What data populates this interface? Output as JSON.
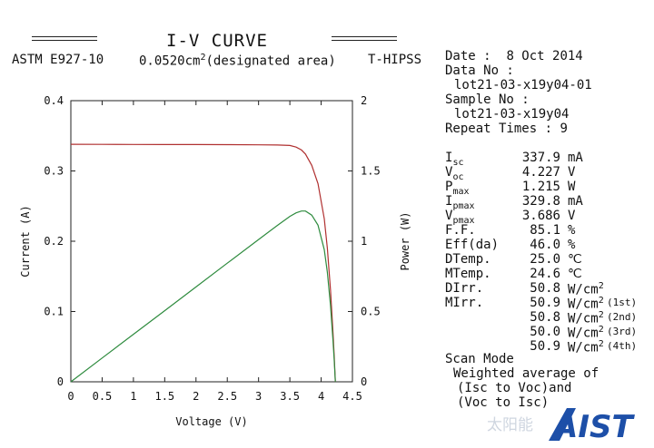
{
  "header": {
    "title": "I-V CURVE",
    "standard": "ASTM E927-10",
    "area_value": "0.0520cm",
    "area_sup": "2",
    "area_note": "(designated area)",
    "method": "T-HIPSS"
  },
  "info": {
    "date_label": "Date :",
    "date_value": "8 Oct 2014",
    "data_no_label": "Data No :",
    "data_no_value": "lot21-03-x19y04-01",
    "sample_no_label": "Sample No :",
    "sample_no_value": "lot21-03-x19y04",
    "repeat_label": "Repeat Times :",
    "repeat_value": "9"
  },
  "params": [
    {
      "main": "I",
      "sub": "sc",
      "value": "337.9",
      "unit": "mA"
    },
    {
      "main": "V",
      "sub": "oc",
      "value": "4.227",
      "unit": "V"
    },
    {
      "main": "P",
      "sub": "max",
      "value": "1.215",
      "unit": "W"
    },
    {
      "main": "I",
      "sub": "pmax",
      "value": "329.8",
      "unit": "mA"
    },
    {
      "main": "V",
      "sub": "pmax",
      "value": "3.686",
      "unit": "V"
    },
    {
      "main": "F.F.",
      "sub": "",
      "value": "85.1",
      "unit": "%"
    },
    {
      "main": "Eff(da)",
      "sub": "",
      "value": "46.0",
      "unit": "%"
    },
    {
      "main": "DTemp.",
      "sub": "",
      "value": "25.0",
      "unit": "℃"
    },
    {
      "main": "MTemp.",
      "sub": "",
      "value": "24.6",
      "unit": "℃"
    },
    {
      "main": "DIrr.",
      "sub": "",
      "value": "50.8",
      "unit": "W/cm",
      "unit_sup": "2",
      "note": ""
    },
    {
      "main": "MIrr.",
      "sub": "",
      "value": "50.9",
      "unit": "W/cm",
      "unit_sup": "2",
      "note": "(1st)"
    },
    {
      "main": "",
      "sub": "",
      "value": "50.8",
      "unit": "W/cm",
      "unit_sup": "2",
      "note": "(2nd)"
    },
    {
      "main": "",
      "sub": "",
      "value": "50.0",
      "unit": "W/cm",
      "unit_sup": "2",
      "note": "(3rd)"
    },
    {
      "main": "",
      "sub": "",
      "value": "50.9",
      "unit": "W/cm",
      "unit_sup": "2",
      "note": "(4th)"
    }
  ],
  "scan": {
    "label": "Scan Mode",
    "line1": "Weighted average of",
    "line2": "(Isc to Voc)and",
    "line3": "(Voc to Isc)"
  },
  "watermark": {
    "chinese": "太阳能",
    "brand": "AIST",
    "brand_color": "#1d4fa8"
  },
  "chart_data": {
    "type": "line",
    "xlabel": "Voltage (V)",
    "ylabel": "Current (A)",
    "y2label": "Power (W)",
    "xlim": [
      0,
      4.5
    ],
    "ylim": [
      0,
      0.4
    ],
    "y2lim": [
      0,
      2
    ],
    "xticks": [
      "0",
      "0.5",
      "1",
      "1.5",
      "2",
      "2.5",
      "3",
      "3.5",
      "4",
      "4.5"
    ],
    "yticks": [
      "0",
      "0.1",
      "0.2",
      "0.3",
      "0.4"
    ],
    "y2ticks": [
      "0",
      "0.5",
      "1",
      "1.5",
      "2"
    ],
    "grid": false,
    "series": [
      {
        "color": "#b03030",
        "axis": "left",
        "points": [
          [
            0,
            0.3379
          ],
          [
            0.5,
            0.3378
          ],
          [
            1.0,
            0.3377
          ],
          [
            1.5,
            0.3376
          ],
          [
            2.0,
            0.3375
          ],
          [
            2.5,
            0.3374
          ],
          [
            3.0,
            0.3372
          ],
          [
            3.3,
            0.3369
          ],
          [
            3.5,
            0.3362
          ],
          [
            3.6,
            0.334
          ],
          [
            3.686,
            0.3298
          ],
          [
            3.75,
            0.324
          ],
          [
            3.85,
            0.308
          ],
          [
            3.95,
            0.282
          ],
          [
            4.05,
            0.232
          ],
          [
            4.1,
            0.19
          ],
          [
            4.15,
            0.13
          ],
          [
            4.19,
            0.07
          ],
          [
            4.21,
            0.035
          ],
          [
            4.227,
            0.0
          ]
        ]
      },
      {
        "color": "#2e8b3e",
        "axis": "right",
        "points": [
          [
            0,
            0
          ],
          [
            0.5,
            0.169
          ],
          [
            1.0,
            0.338
          ],
          [
            1.5,
            0.506
          ],
          [
            2.0,
            0.675
          ],
          [
            2.5,
            0.844
          ],
          [
            3.0,
            1.012
          ],
          [
            3.3,
            1.112
          ],
          [
            3.5,
            1.177
          ],
          [
            3.6,
            1.202
          ],
          [
            3.686,
            1.215
          ],
          [
            3.75,
            1.215
          ],
          [
            3.85,
            1.186
          ],
          [
            3.95,
            1.114
          ],
          [
            4.05,
            0.94
          ],
          [
            4.1,
            0.779
          ],
          [
            4.15,
            0.54
          ],
          [
            4.19,
            0.293
          ],
          [
            4.21,
            0.147
          ],
          [
            4.227,
            0.0
          ]
        ]
      }
    ]
  }
}
